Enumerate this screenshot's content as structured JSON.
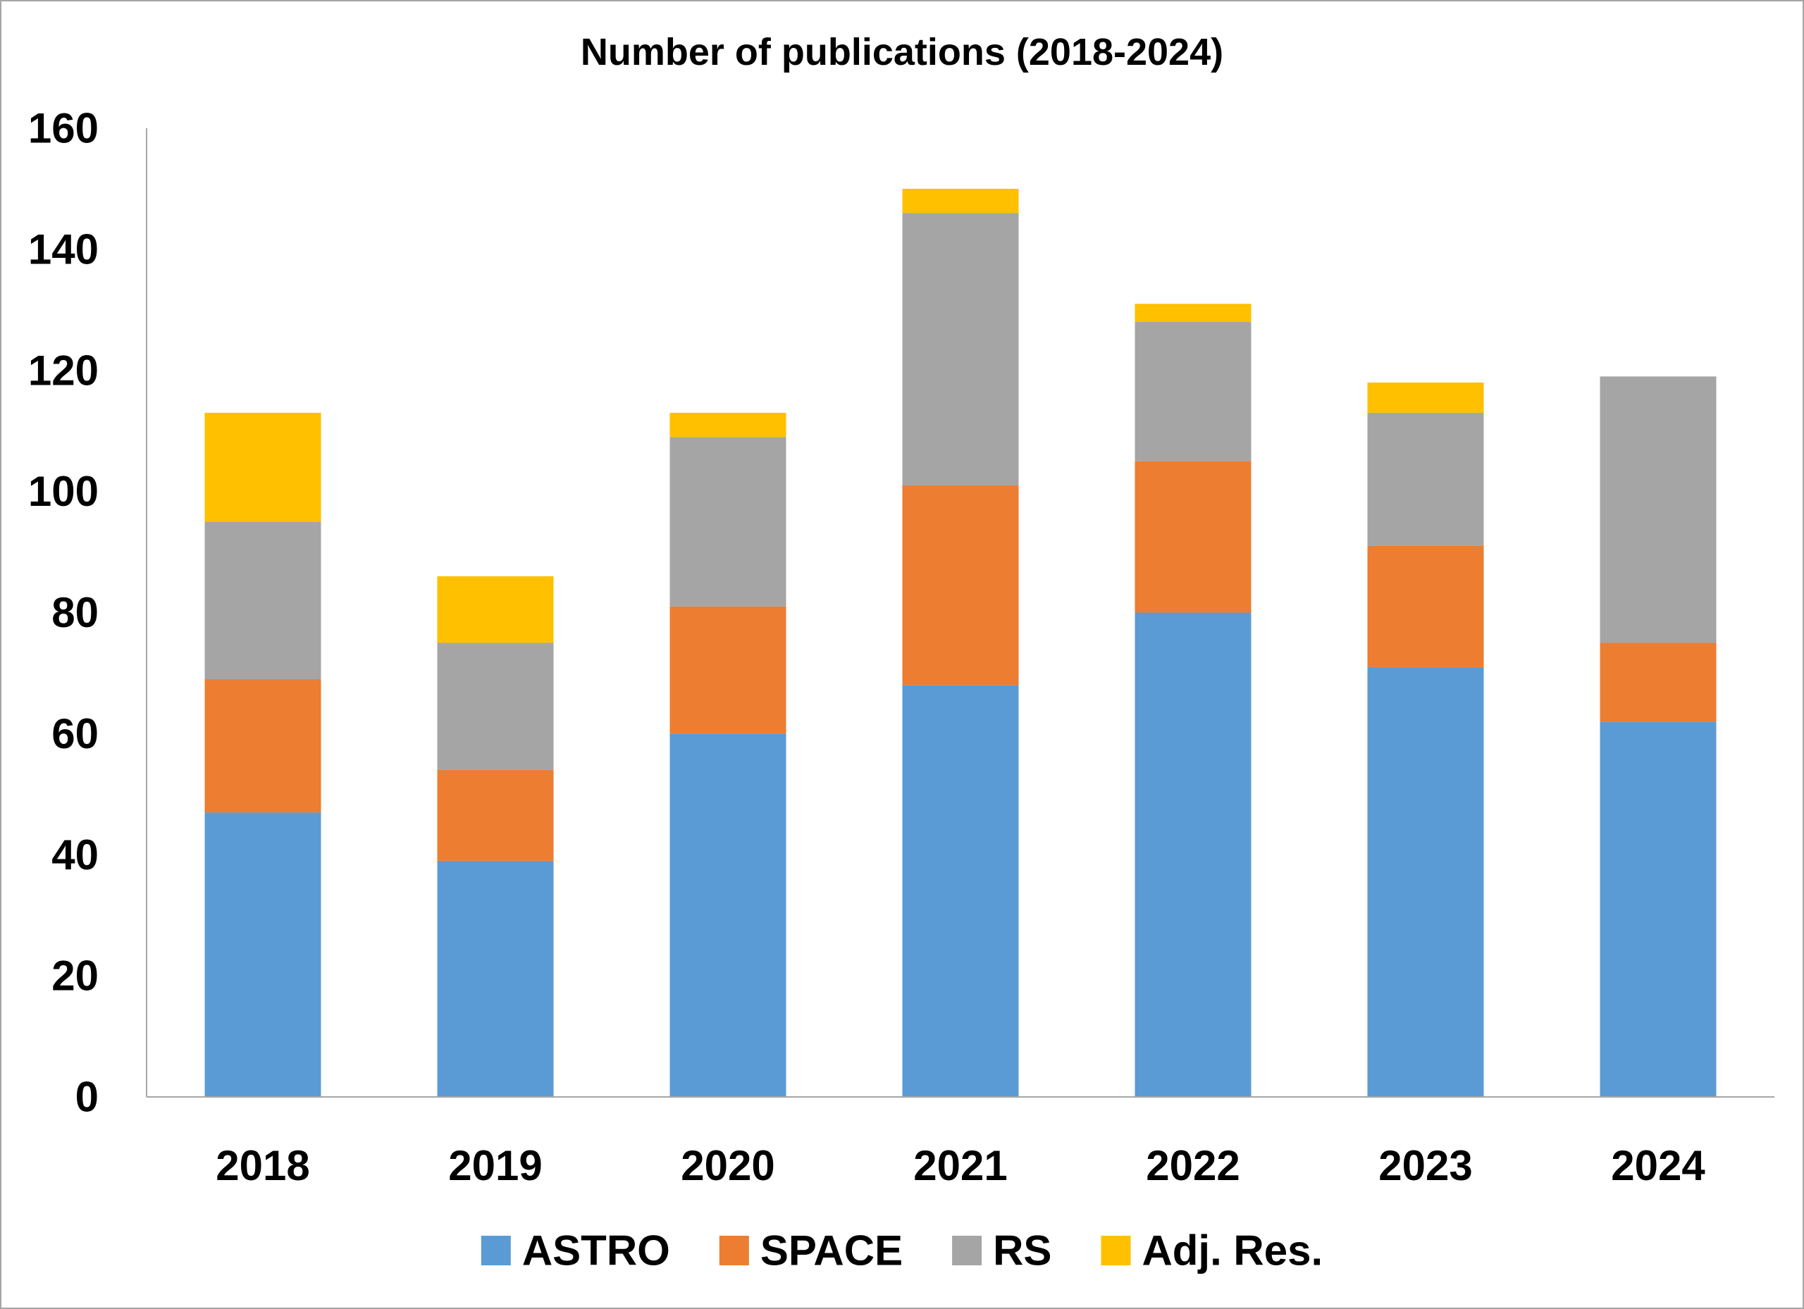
{
  "chart_data": {
    "type": "bar",
    "stacked": true,
    "title": "Number of publications (2018-2024)",
    "xlabel": "",
    "ylabel": "",
    "categories": [
      "2018",
      "2019",
      "2020",
      "2021",
      "2022",
      "2023",
      "2024"
    ],
    "series": [
      {
        "name": "ASTRO",
        "color": "#5b9bd5",
        "values": [
          47,
          39,
          60,
          68,
          80,
          71,
          62
        ]
      },
      {
        "name": "SPACE",
        "color": "#ed7d31",
        "values": [
          22,
          15,
          21,
          33,
          25,
          20,
          13
        ]
      },
      {
        "name": "RS",
        "color": "#a5a5a5",
        "values": [
          26,
          21,
          28,
          45,
          23,
          22,
          44
        ]
      },
      {
        "name": "Adj. Res.",
        "color": "#ffc000",
        "values": [
          18,
          11,
          4,
          4,
          3,
          5,
          0
        ]
      }
    ],
    "ylim": [
      0,
      160
    ],
    "yticks": [
      "0",
      "20",
      "40",
      "60",
      "80",
      "100",
      "120",
      "140",
      "160"
    ],
    "grid": false,
    "legend": "bottom"
  }
}
